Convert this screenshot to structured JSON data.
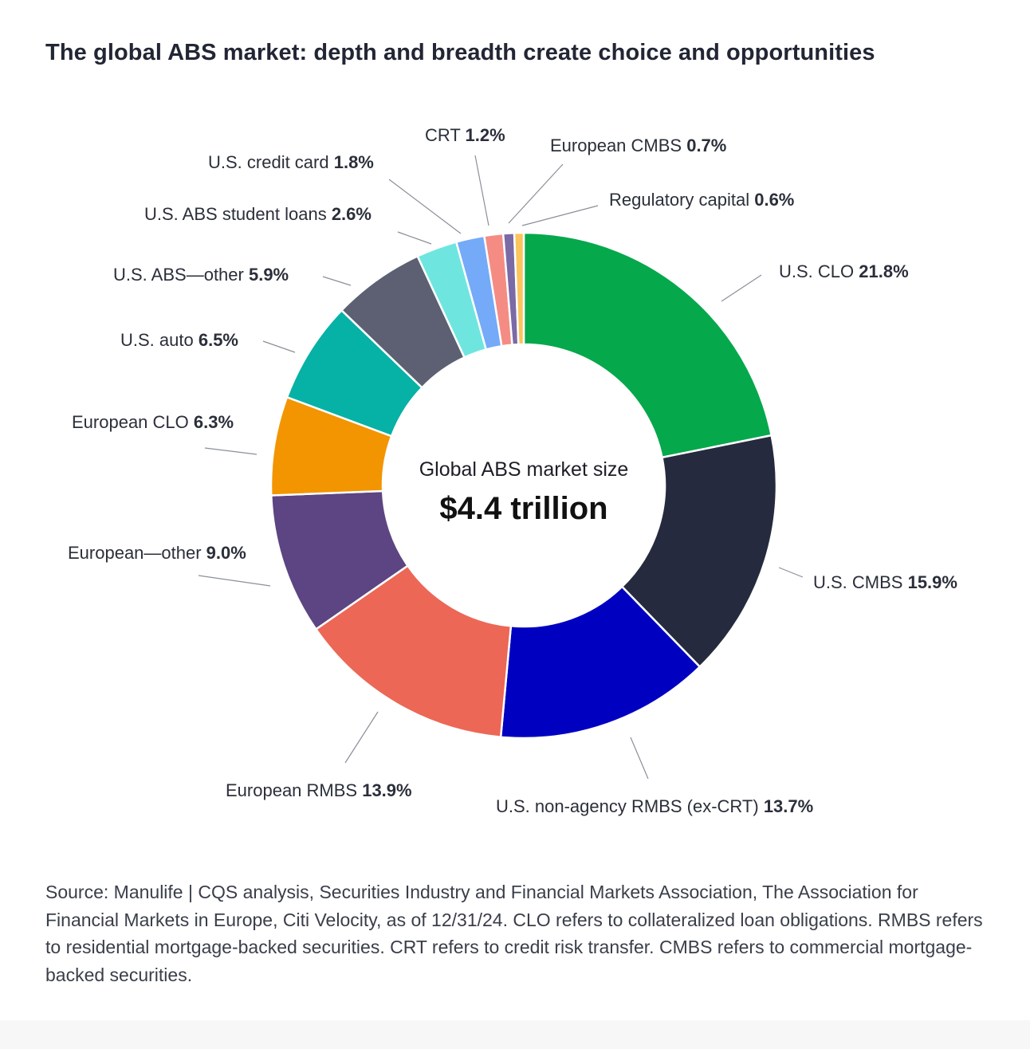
{
  "title": "The global ABS market: depth and breadth create choice and opportunities",
  "center": {
    "subtitle": "Global ABS market size",
    "total": "$4.4 trillion"
  },
  "chart_data": {
    "type": "pie",
    "subtype": "donut",
    "title": "The global ABS market: depth and breadth create choice and opportunities",
    "unit": "%",
    "slices": [
      {
        "name": "U.S. CLO",
        "value": 21.8,
        "color": "#05a84b"
      },
      {
        "name": "U.S. CMBS",
        "value": 15.9,
        "color": "#262a3e"
      },
      {
        "name": "U.S. non-agency RMBS (ex-CRT)",
        "value": 13.7,
        "color": "#0000c1"
      },
      {
        "name": "European RMBS",
        "value": 13.9,
        "color": "#ec6755"
      },
      {
        "name": "European—other",
        "value": 9.0,
        "color": "#5c4582"
      },
      {
        "name": "European CLO",
        "value": 6.3,
        "color": "#f29500"
      },
      {
        "name": "U.S. auto",
        "value": 6.5,
        "color": "#06b1a6"
      },
      {
        "name": "U.S. ABS—other",
        "value": 5.9,
        "color": "#5c6072"
      },
      {
        "name": "U.S. ABS student loans",
        "value": 2.6,
        "color": "#6ee6df"
      },
      {
        "name": "U.S. credit card",
        "value": 1.8,
        "color": "#74aaf8"
      },
      {
        "name": "CRT",
        "value": 1.2,
        "color": "#f58c83"
      },
      {
        "name": "European CMBS",
        "value": 0.7,
        "color": "#7a6aa6"
      },
      {
        "name": "Regulatory capital",
        "value": 0.6,
        "color": "#fbc45c"
      }
    ],
    "labels": [
      {
        "name": "U.S. CLO",
        "pct": "21.8%"
      },
      {
        "name": "U.S. CMBS",
        "pct": "15.9%"
      },
      {
        "name": "U.S. non-agency RMBS (ex-CRT)",
        "pct": "13.7%"
      },
      {
        "name": "European RMBS",
        "pct": "13.9%"
      },
      {
        "name": "European—other",
        "pct": "9.0%"
      },
      {
        "name": "European CLO",
        "pct": "6.3%"
      },
      {
        "name": "U.S. auto",
        "pct": "6.5%"
      },
      {
        "name": "U.S. ABS—other",
        "pct": "5.9%"
      },
      {
        "name": "U.S. ABS student loans",
        "pct": "2.6%"
      },
      {
        "name": "U.S. credit card",
        "pct": "1.8%"
      },
      {
        "name": "CRT",
        "pct": "1.2%"
      },
      {
        "name": "European CMBS",
        "pct": "0.7%"
      },
      {
        "name": "Regulatory capital",
        "pct": "0.6%"
      }
    ]
  },
  "source": "Source: Manulife | CQS analysis, Securities Industry and Financial Markets Association, The Association for Financial Markets in Europe, Citi Velocity, as of 12/31/24. CLO refers to collateralized loan obligations. RMBS refers to residential mortgage-backed securities. CRT refers to credit risk transfer. CMBS refers to commercial mortgage-backed securities."
}
